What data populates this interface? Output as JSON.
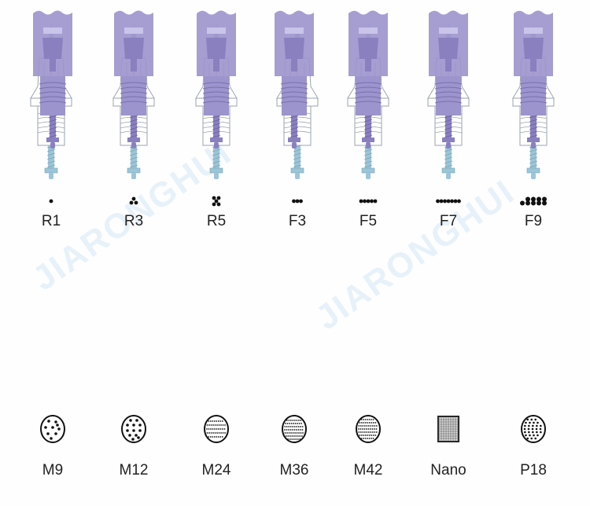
{
  "watermark": "JIARONGHUI",
  "colors": {
    "needle_tip": "#9cc4da",
    "cartridge": "#9c94cc",
    "outline": "#9aa4b0"
  },
  "top_row": [
    {
      "label": "R1",
      "pattern": "R1"
    },
    {
      "label": "R3",
      "pattern": "R3"
    },
    {
      "label": "R5",
      "pattern": "R5"
    },
    {
      "label": "F3",
      "pattern": "F3"
    },
    {
      "label": "F5",
      "pattern": "F5"
    },
    {
      "label": "F7",
      "pattern": "F7"
    },
    {
      "label": "F9",
      "pattern": "F9"
    }
  ],
  "bottom_row": [
    {
      "label": "M9",
      "pattern": "M9"
    },
    {
      "label": "M12",
      "pattern": "M12"
    },
    {
      "label": "M24",
      "pattern": "M24"
    },
    {
      "label": "M36",
      "pattern": "M36"
    },
    {
      "label": "M42",
      "pattern": "M42"
    },
    {
      "label": "Nano",
      "pattern": "Nano"
    },
    {
      "label": "P18",
      "pattern": "P18"
    }
  ]
}
